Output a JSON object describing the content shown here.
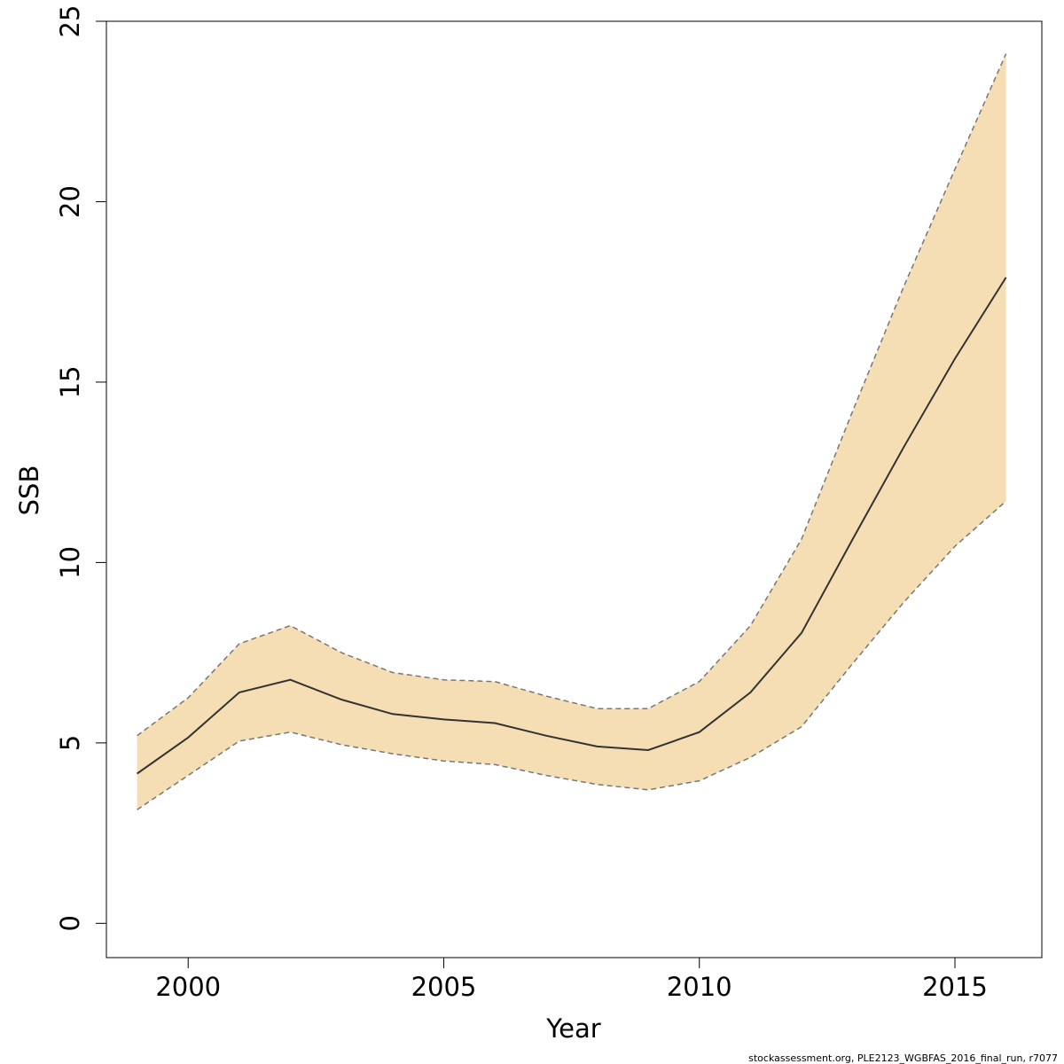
{
  "chart_data": {
    "type": "area",
    "xlabel": "Year",
    "ylabel": "SSB",
    "xlim": [
      1998.4,
      2016.7
    ],
    "ylim": [
      -0.95,
      25
    ],
    "x_ticks": [
      2000,
      2005,
      2010,
      2015
    ],
    "y_ticks": [
      0,
      5,
      10,
      15,
      20,
      25
    ],
    "x_tick_labels": [
      "2000",
      "2005",
      "2010",
      "2015"
    ],
    "y_tick_labels": [
      "0",
      "5",
      "10",
      "15",
      "20",
      "25"
    ],
    "x": [
      1999,
      2000,
      2001,
      2002,
      2003,
      2004,
      2005,
      2006,
      2007,
      2008,
      2009,
      2010,
      2011,
      2012,
      2013,
      2014,
      2015,
      2016
    ],
    "series": [
      {
        "role": "estimate",
        "values": [
          4.15,
          5.15,
          6.4,
          6.75,
          6.2,
          5.8,
          5.65,
          5.55,
          5.2,
          4.9,
          4.8,
          5.3,
          6.4,
          8.05,
          10.65,
          13.2,
          15.65,
          17.9
        ]
      },
      {
        "role": "upper",
        "values": [
          5.2,
          6.25,
          7.75,
          8.25,
          7.5,
          6.95,
          6.75,
          6.7,
          6.3,
          5.95,
          5.95,
          6.7,
          8.25,
          10.65,
          14.2,
          17.65,
          20.9,
          24.1
        ]
      },
      {
        "role": "lower",
        "values": [
          3.15,
          4.1,
          5.05,
          5.3,
          4.95,
          4.7,
          4.5,
          4.4,
          4.1,
          3.85,
          3.7,
          3.95,
          4.6,
          5.45,
          7.2,
          8.9,
          10.45,
          11.7
        ]
      }
    ],
    "grid": false,
    "colors": {
      "band": "#f5deb3",
      "line": "#333333",
      "bound": "#777777",
      "axis": "#000000"
    }
  },
  "footer_text": "stockassessment.org, PLE2123_WGBFAS_2016_final_run, r7077"
}
